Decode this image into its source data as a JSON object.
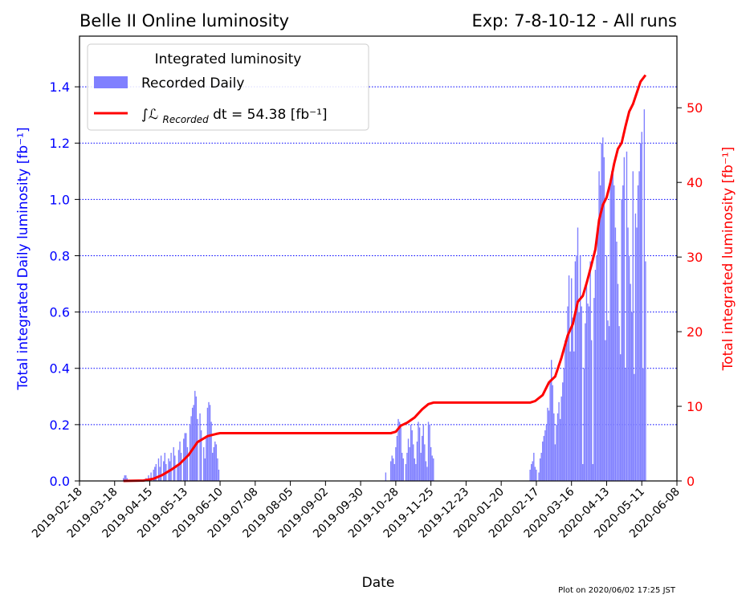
{
  "chart_data": {
    "type": "bar",
    "title_left": "Belle II Online luminosity",
    "title_right": "Exp: 7-8-10-12 - All runs",
    "xlabel": "Date",
    "ylabel_left": "Total integrated Daily luminosity [fb⁻¹]",
    "ylabel_right": "Total integrated luminosity [fb⁻¹]",
    "footnote": "Plot on 2020/06/02 17:25  JST",
    "x_ticks": [
      "2019-02-18",
      "2019-03-18",
      "2019-04-15",
      "2019-05-13",
      "2019-06-10",
      "2019-07-08",
      "2019-08-05",
      "2019-09-02",
      "2019-09-30",
      "2019-10-28",
      "2019-11-25",
      "2019-12-23",
      "2020-01-20",
      "2020-02-17",
      "2020-03-16",
      "2020-04-13",
      "2020-05-11",
      "2020-06-08"
    ],
    "xlim": [
      "2019-02-18",
      "2020-06-08"
    ],
    "ylim_left": [
      0,
      1.58
    ],
    "yticks_left": [
      "0.0",
      "0.2",
      "0.4",
      "0.6",
      "0.8",
      "1.0",
      "1.2",
      "1.4"
    ],
    "ylim_right": [
      0,
      59.6
    ],
    "yticks_right": [
      "0",
      "10",
      "20",
      "30",
      "40",
      "50"
    ],
    "grid": "horizontal dotted blue at left-axis ticks",
    "legend": {
      "placement": "top-left",
      "title": "Integrated luminosity",
      "bar_label": "Recorded Daily",
      "line_label_prefix": "∫ℒ",
      "line_label_sub": "Recorded",
      "line_label_suffix": " dt = 54.38 [fb⁻¹]"
    },
    "colors": {
      "bars": "#8080ff",
      "line": "#ff0000",
      "grid": "#0000ff",
      "left_axis": "#0000ff",
      "right_axis": "#ff0000"
    },
    "series": [
      {
        "name": "Recorded Daily",
        "axis": "left",
        "kind": "bar",
        "points": [
          [
            "2019-03-25",
            0.01
          ],
          [
            "2019-03-26",
            0.02
          ],
          [
            "2019-03-27",
            0.02
          ],
          [
            "2019-03-28",
            0.01
          ],
          [
            "2019-04-12",
            0.01
          ],
          [
            "2019-04-14",
            0.02
          ],
          [
            "2019-04-16",
            0.03
          ],
          [
            "2019-04-18",
            0.04
          ],
          [
            "2019-04-19",
            0.05
          ],
          [
            "2019-04-20",
            0.06
          ],
          [
            "2019-04-22",
            0.08
          ],
          [
            "2019-04-23",
            0.05
          ],
          [
            "2019-04-24",
            0.09
          ],
          [
            "2019-04-26",
            0.07
          ],
          [
            "2019-04-27",
            0.1
          ],
          [
            "2019-04-28",
            0.06
          ],
          [
            "2019-04-30",
            0.08
          ],
          [
            "2019-05-01",
            0.07
          ],
          [
            "2019-05-02",
            0.1
          ],
          [
            "2019-05-04",
            0.12
          ],
          [
            "2019-05-05",
            0.09
          ],
          [
            "2019-05-07",
            0.05
          ],
          [
            "2019-05-08",
            0.11
          ],
          [
            "2019-05-09",
            0.14
          ],
          [
            "2019-05-10",
            0.1
          ],
          [
            "2019-05-12",
            0.15
          ],
          [
            "2019-05-13",
            0.17
          ],
          [
            "2019-05-14",
            0.17
          ],
          [
            "2019-05-15",
            0.12
          ],
          [
            "2019-05-17",
            0.2
          ],
          [
            "2019-05-18",
            0.23
          ],
          [
            "2019-05-19",
            0.26
          ],
          [
            "2019-05-20",
            0.27
          ],
          [
            "2019-05-21",
            0.32
          ],
          [
            "2019-05-22",
            0.3
          ],
          [
            "2019-05-23",
            0.22
          ],
          [
            "2019-05-25",
            0.24
          ],
          [
            "2019-05-26",
            0.18
          ],
          [
            "2019-05-28",
            0.12
          ],
          [
            "2019-05-29",
            0.08
          ],
          [
            "2019-05-30",
            0.16
          ],
          [
            "2019-05-31",
            0.26
          ],
          [
            "2019-06-01",
            0.28
          ],
          [
            "2019-06-02",
            0.27
          ],
          [
            "2019-06-03",
            0.21
          ],
          [
            "2019-06-04",
            0.1
          ],
          [
            "2019-06-05",
            0.12
          ],
          [
            "2019-06-06",
            0.14
          ],
          [
            "2019-06-07",
            0.13
          ],
          [
            "2019-06-08",
            0.08
          ],
          [
            "2019-06-09",
            0.04
          ],
          [
            "2019-10-20",
            0.03
          ],
          [
            "2019-10-24",
            0.07
          ],
          [
            "2019-10-25",
            0.09
          ],
          [
            "2019-10-26",
            0.08
          ],
          [
            "2019-10-27",
            0.06
          ],
          [
            "2019-10-28",
            0.12
          ],
          [
            "2019-10-29",
            0.16
          ],
          [
            "2019-10-30",
            0.22
          ],
          [
            "2019-10-31",
            0.21
          ],
          [
            "2019-11-01",
            0.19
          ],
          [
            "2019-11-02",
            0.1
          ],
          [
            "2019-11-03",
            0.08
          ],
          [
            "2019-11-05",
            0.06
          ],
          [
            "2019-11-06",
            0.1
          ],
          [
            "2019-11-07",
            0.15
          ],
          [
            "2019-11-08",
            0.12
          ],
          [
            "2019-11-09",
            0.2
          ],
          [
            "2019-11-10",
            0.18
          ],
          [
            "2019-11-11",
            0.13
          ],
          [
            "2019-11-12",
            0.08
          ],
          [
            "2019-11-13",
            0.06
          ],
          [
            "2019-11-14",
            0.14
          ],
          [
            "2019-11-15",
            0.21
          ],
          [
            "2019-11-16",
            0.19
          ],
          [
            "2019-11-17",
            0.1
          ],
          [
            "2019-11-18",
            0.16
          ],
          [
            "2019-11-19",
            0.2
          ],
          [
            "2019-11-20",
            0.13
          ],
          [
            "2019-11-21",
            0.07
          ],
          [
            "2019-11-22",
            0.05
          ],
          [
            "2019-11-23",
            0.21
          ],
          [
            "2019-11-24",
            0.2
          ],
          [
            "2019-11-25",
            0.12
          ],
          [
            "2019-11-26",
            0.09
          ],
          [
            "2019-11-27",
            0.08
          ],
          [
            "2020-02-12",
            0.04
          ],
          [
            "2020-02-13",
            0.06
          ],
          [
            "2020-02-14",
            0.07
          ],
          [
            "2020-02-15",
            0.1
          ],
          [
            "2020-02-16",
            0.05
          ],
          [
            "2020-02-17",
            0.04
          ],
          [
            "2020-02-19",
            0.03
          ],
          [
            "2020-02-20",
            0.08
          ],
          [
            "2020-02-21",
            0.1
          ],
          [
            "2020-02-22",
            0.14
          ],
          [
            "2020-02-23",
            0.16
          ],
          [
            "2020-02-24",
            0.18
          ],
          [
            "2020-02-25",
            0.2
          ],
          [
            "2020-02-26",
            0.26
          ],
          [
            "2020-02-27",
            0.25
          ],
          [
            "2020-02-28",
            0.36
          ],
          [
            "2020-02-29",
            0.43
          ],
          [
            "2020-03-01",
            0.34
          ],
          [
            "2020-03-02",
            0.24
          ],
          [
            "2020-03-03",
            0.13
          ],
          [
            "2020-03-04",
            0.2
          ],
          [
            "2020-03-05",
            0.24
          ],
          [
            "2020-03-06",
            0.28
          ],
          [
            "2020-03-07",
            0.22
          ],
          [
            "2020-03-08",
            0.3
          ],
          [
            "2020-03-09",
            0.35
          ],
          [
            "2020-03-10",
            0.4
          ],
          [
            "2020-03-11",
            0.5
          ],
          [
            "2020-03-12",
            0.49
          ],
          [
            "2020-03-13",
            0.62
          ],
          [
            "2020-03-14",
            0.73
          ],
          [
            "2020-03-15",
            0.46
          ],
          [
            "2020-03-16",
            0.72
          ],
          [
            "2020-03-17",
            0.58
          ],
          [
            "2020-03-18",
            0.46
          ],
          [
            "2020-03-19",
            0.78
          ],
          [
            "2020-03-20",
            0.8
          ],
          [
            "2020-03-21",
            0.9
          ],
          [
            "2020-03-22",
            0.6
          ],
          [
            "2020-03-23",
            0.8
          ],
          [
            "2020-03-24",
            0.62
          ],
          [
            "2020-03-25",
            0.06
          ],
          [
            "2020-03-26",
            0.4
          ],
          [
            "2020-03-27",
            0.56
          ],
          [
            "2020-03-28",
            0.7
          ],
          [
            "2020-03-29",
            0.63
          ],
          [
            "2020-03-30",
            0.62
          ],
          [
            "2020-03-31",
            0.78
          ],
          [
            "2020-04-01",
            0.5
          ],
          [
            "2020-04-02",
            0.06
          ],
          [
            "2020-04-03",
            0.65
          ],
          [
            "2020-04-04",
            0.75
          ],
          [
            "2020-04-05",
            0.8
          ],
          [
            "2020-04-06",
            0.9
          ],
          [
            "2020-04-07",
            1.1
          ],
          [
            "2020-04-08",
            1.05
          ],
          [
            "2020-04-09",
            1.2
          ],
          [
            "2020-04-10",
            1.22
          ],
          [
            "2020-04-11",
            1.15
          ],
          [
            "2020-04-12",
            0.5
          ],
          [
            "2020-04-13",
            0.8
          ],
          [
            "2020-04-14",
            0.57
          ],
          [
            "2020-04-15",
            0.55
          ],
          [
            "2020-04-16",
            1.05
          ],
          [
            "2020-04-17",
            1.1
          ],
          [
            "2020-04-18",
            1.12
          ],
          [
            "2020-04-19",
            1.05
          ],
          [
            "2020-04-20",
            0.9
          ],
          [
            "2020-04-21",
            0.85
          ],
          [
            "2020-04-22",
            0.7
          ],
          [
            "2020-04-23",
            0.55
          ],
          [
            "2020-04-24",
            0.45
          ],
          [
            "2020-04-25",
            1.0
          ],
          [
            "2020-04-26",
            1.05
          ],
          [
            "2020-04-27",
            1.15
          ],
          [
            "2020-04-28",
            0.4
          ],
          [
            "2020-04-29",
            1.17
          ],
          [
            "2020-04-30",
            0.9
          ],
          [
            "2020-05-01",
            0.8
          ],
          [
            "2020-05-02",
            0.7
          ],
          [
            "2020-05-03",
            0.6
          ],
          [
            "2020-05-04",
            1.1
          ],
          [
            "2020-05-05",
            0.38
          ],
          [
            "2020-05-06",
            0.95
          ],
          [
            "2020-05-07",
            0.9
          ],
          [
            "2020-05-08",
            1.05
          ],
          [
            "2020-05-09",
            1.1
          ],
          [
            "2020-05-10",
            1.2
          ],
          [
            "2020-05-11",
            1.24
          ],
          [
            "2020-05-12",
            0.4
          ],
          [
            "2020-05-13",
            1.32
          ],
          [
            "2020-05-14",
            0.78
          ]
        ]
      },
      {
        "name": "Integrated luminosity",
        "axis": "right",
        "kind": "line",
        "points": [
          [
            "2019-03-25",
            0.0
          ],
          [
            "2019-04-10",
            0.05
          ],
          [
            "2019-04-18",
            0.3
          ],
          [
            "2019-04-25",
            0.8
          ],
          [
            "2019-05-02",
            1.5
          ],
          [
            "2019-05-09",
            2.3
          ],
          [
            "2019-05-16",
            3.5
          ],
          [
            "2019-05-23",
            5.2
          ],
          [
            "2019-05-31",
            6.0
          ],
          [
            "2019-06-07",
            6.3
          ],
          [
            "2019-06-10",
            6.4
          ],
          [
            "2019-10-24",
            6.4
          ],
          [
            "2019-10-28",
            6.6
          ],
          [
            "2019-11-01",
            7.4
          ],
          [
            "2019-11-06",
            7.8
          ],
          [
            "2019-11-12",
            8.5
          ],
          [
            "2019-11-18",
            9.6
          ],
          [
            "2019-11-23",
            10.3
          ],
          [
            "2019-11-27",
            10.5
          ],
          [
            "2020-02-12",
            10.5
          ],
          [
            "2020-02-16",
            10.7
          ],
          [
            "2020-02-22",
            11.5
          ],
          [
            "2020-02-27",
            13.2
          ],
          [
            "2020-03-03",
            14.0
          ],
          [
            "2020-03-08",
            16.5
          ],
          [
            "2020-03-13",
            19.5
          ],
          [
            "2020-03-17",
            21.0
          ],
          [
            "2020-03-21",
            24.0
          ],
          [
            "2020-03-25",
            24.8
          ],
          [
            "2020-03-28",
            26.5
          ],
          [
            "2020-04-01",
            29.0
          ],
          [
            "2020-04-04",
            31.0
          ],
          [
            "2020-04-07",
            35.0
          ],
          [
            "2020-04-10",
            37.0
          ],
          [
            "2020-04-13",
            38.0
          ],
          [
            "2020-04-16",
            40.0
          ],
          [
            "2020-04-19",
            42.5
          ],
          [
            "2020-04-22",
            44.5
          ],
          [
            "2020-04-25",
            45.3
          ],
          [
            "2020-04-28",
            47.5
          ],
          [
            "2020-05-01",
            49.5
          ],
          [
            "2020-05-04",
            50.5
          ],
          [
            "2020-05-07",
            52.0
          ],
          [
            "2020-05-10",
            53.5
          ],
          [
            "2020-05-14",
            54.38
          ]
        ]
      }
    ]
  }
}
